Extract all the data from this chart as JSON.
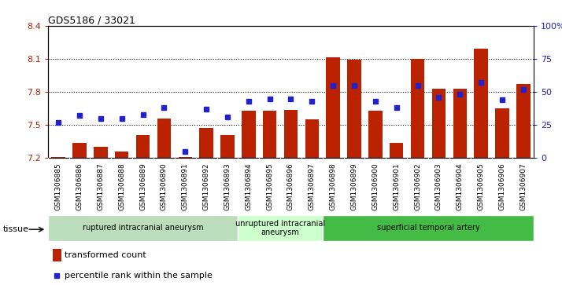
{
  "title": "GDS5186 / 33021",
  "samples": [
    "GSM1306885",
    "GSM1306886",
    "GSM1306887",
    "GSM1306888",
    "GSM1306889",
    "GSM1306890",
    "GSM1306891",
    "GSM1306892",
    "GSM1306893",
    "GSM1306894",
    "GSM1306895",
    "GSM1306896",
    "GSM1306897",
    "GSM1306898",
    "GSM1306899",
    "GSM1306900",
    "GSM1306901",
    "GSM1306902",
    "GSM1306903",
    "GSM1306904",
    "GSM1306905",
    "GSM1306906",
    "GSM1306907"
  ],
  "bar_values": [
    7.21,
    7.34,
    7.3,
    7.26,
    7.41,
    7.56,
    7.21,
    7.47,
    7.41,
    7.63,
    7.63,
    7.64,
    7.55,
    8.11,
    8.09,
    7.63,
    7.34,
    8.1,
    7.83,
    7.83,
    8.19,
    7.65,
    7.87
  ],
  "percentile_values": [
    27,
    32,
    30,
    30,
    33,
    38,
    5,
    37,
    31,
    43,
    45,
    45,
    43,
    55,
    55,
    43,
    38,
    55,
    46,
    48,
    57,
    44,
    52
  ],
  "bar_bottom": 7.2,
  "ylim_left": [
    7.2,
    8.4
  ],
  "ylim_right": [
    0,
    100
  ],
  "yticks_left": [
    7.2,
    7.5,
    7.8,
    8.1,
    8.4
  ],
  "ytick_labels_left": [
    "7.2",
    "7.5",
    "7.8",
    "8.1",
    "8.4"
  ],
  "yticks_right": [
    0,
    25,
    50,
    75,
    100
  ],
  "ytick_labels_right": [
    "0",
    "25",
    "50",
    "75",
    "100%"
  ],
  "grid_lines": [
    7.5,
    7.8,
    8.1
  ],
  "bar_color": "#bb2200",
  "marker_color": "#2222cc",
  "groups": [
    {
      "label": "ruptured intracranial aneurysm",
      "start": 0,
      "end": 9,
      "color": "#bbddbb"
    },
    {
      "label": "unruptured intracranial\naneurysm",
      "start": 9,
      "end": 13,
      "color": "#ccffcc"
    },
    {
      "label": "superficial temporal artery",
      "start": 13,
      "end": 23,
      "color": "#44bb44"
    }
  ],
  "tissue_label": "tissue",
  "legend_bar_label": "transformed count",
  "legend_marker_label": "percentile rank within the sample",
  "plot_bg_color": "#ffffff",
  "xticklabel_bg": "#d8d8d8"
}
